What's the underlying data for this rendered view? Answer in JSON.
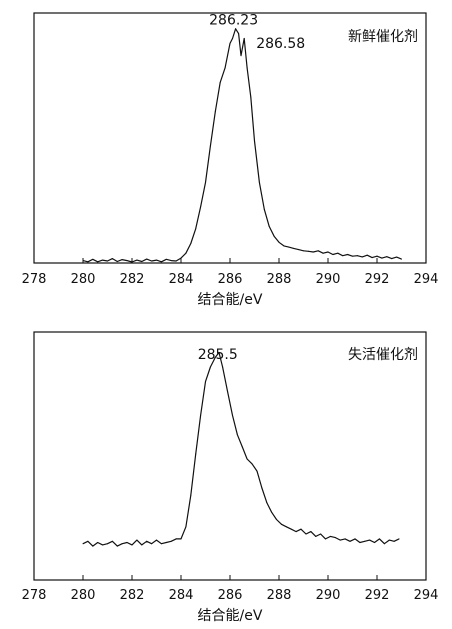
{
  "chart_data": [
    {
      "type": "line",
      "title": "",
      "xlabel": "结合能/eV",
      "ylabel": "",
      "xlim": [
        278,
        294
      ],
      "ylim": [
        0,
        1.0
      ],
      "x_ticks": [
        "278",
        "280",
        "282",
        "284",
        "286",
        "288",
        "290",
        "292",
        "294"
      ],
      "legend_text": "新鲜催化剂",
      "legend_position": "top-right",
      "grid": false,
      "y_tick_labels": false,
      "annotations": [
        {
          "text": "286.23",
          "x": 286.23,
          "y": 0.945
        },
        {
          "text": "286.58",
          "x": 286.58,
          "y": 0.905
        }
      ],
      "series": [
        {
          "x": [
            280.0,
            280.2,
            280.4,
            280.6,
            280.8,
            281.0,
            281.2,
            281.4,
            281.6,
            281.8,
            282.0,
            282.2,
            282.4,
            282.6,
            282.8,
            283.0,
            283.2,
            283.4,
            283.6,
            283.8,
            284.0,
            284.2,
            284.4,
            284.6,
            284.8,
            285.0,
            285.2,
            285.4,
            285.6,
            285.8,
            286.0,
            286.1,
            286.23,
            286.35,
            286.45,
            286.58,
            286.7,
            286.85,
            287.0,
            287.2,
            287.4,
            287.6,
            287.8,
            288.0,
            288.2,
            288.4,
            288.6,
            288.8,
            289.0,
            289.2,
            289.4,
            289.6,
            289.8,
            290.0,
            290.2,
            290.4,
            290.6,
            290.8,
            291.0,
            291.2,
            291.4,
            291.6,
            291.8,
            292.0,
            292.2,
            292.4,
            292.6,
            292.8,
            293.0
          ],
          "y": [
            0.01,
            0.005,
            0.015,
            0.005,
            0.012,
            0.008,
            0.018,
            0.006,
            0.014,
            0.01,
            0.004,
            0.012,
            0.006,
            0.016,
            0.008,
            0.012,
            0.005,
            0.015,
            0.01,
            0.008,
            0.02,
            0.04,
            0.08,
            0.14,
            0.23,
            0.33,
            0.48,
            0.62,
            0.74,
            0.8,
            0.9,
            0.92,
            0.96,
            0.94,
            0.85,
            0.92,
            0.8,
            0.68,
            0.5,
            0.33,
            0.22,
            0.15,
            0.11,
            0.085,
            0.07,
            0.065,
            0.06,
            0.055,
            0.05,
            0.048,
            0.045,
            0.05,
            0.04,
            0.045,
            0.035,
            0.04,
            0.03,
            0.035,
            0.028,
            0.03,
            0.025,
            0.032,
            0.022,
            0.028,
            0.02,
            0.026,
            0.018,
            0.024,
            0.016
          ]
        }
      ]
    },
    {
      "type": "line",
      "title": "",
      "xlabel": "结合能/eV",
      "ylabel": "",
      "xlim": [
        278,
        294
      ],
      "ylim": [
        0,
        1.0
      ],
      "x_ticks": [
        "278",
        "280",
        "282",
        "284",
        "286",
        "288",
        "290",
        "292",
        "294"
      ],
      "legend_text": "失活催化剂",
      "legend_position": "top-right",
      "grid": false,
      "y_tick_labels": false,
      "annotations": [
        {
          "text": "285.5",
          "x": 285.5,
          "y": 0.88
        }
      ],
      "series": [
        {
          "x": [
            280.0,
            280.2,
            280.4,
            280.6,
            280.8,
            281.0,
            281.2,
            281.4,
            281.6,
            281.8,
            282.0,
            282.2,
            282.4,
            282.6,
            282.8,
            283.0,
            283.2,
            283.4,
            283.6,
            283.8,
            284.0,
            284.2,
            284.4,
            284.6,
            284.8,
            285.0,
            285.2,
            285.4,
            285.55,
            285.7,
            285.9,
            286.1,
            286.3,
            286.5,
            286.7,
            286.9,
            287.1,
            287.3,
            287.5,
            287.7,
            287.9,
            288.1,
            288.3,
            288.5,
            288.7,
            288.9,
            289.1,
            289.3,
            289.5,
            289.7,
            289.9,
            290.1,
            290.3,
            290.5,
            290.7,
            290.9,
            291.1,
            291.3,
            291.5,
            291.7,
            291.9,
            292.1,
            292.3,
            292.5,
            292.7,
            292.9
          ],
          "y": [
            0.15,
            0.16,
            0.14,
            0.155,
            0.145,
            0.15,
            0.16,
            0.14,
            0.15,
            0.155,
            0.145,
            0.165,
            0.145,
            0.16,
            0.15,
            0.165,
            0.15,
            0.155,
            0.16,
            0.17,
            0.17,
            0.22,
            0.35,
            0.52,
            0.68,
            0.82,
            0.88,
            0.92,
            0.94,
            0.88,
            0.78,
            0.68,
            0.6,
            0.55,
            0.5,
            0.48,
            0.45,
            0.38,
            0.32,
            0.28,
            0.25,
            0.23,
            0.22,
            0.21,
            0.2,
            0.21,
            0.19,
            0.2,
            0.18,
            0.19,
            0.17,
            0.18,
            0.175,
            0.165,
            0.17,
            0.16,
            0.17,
            0.155,
            0.16,
            0.165,
            0.155,
            0.17,
            0.15,
            0.165,
            0.16,
            0.17
          ]
        }
      ]
    }
  ]
}
